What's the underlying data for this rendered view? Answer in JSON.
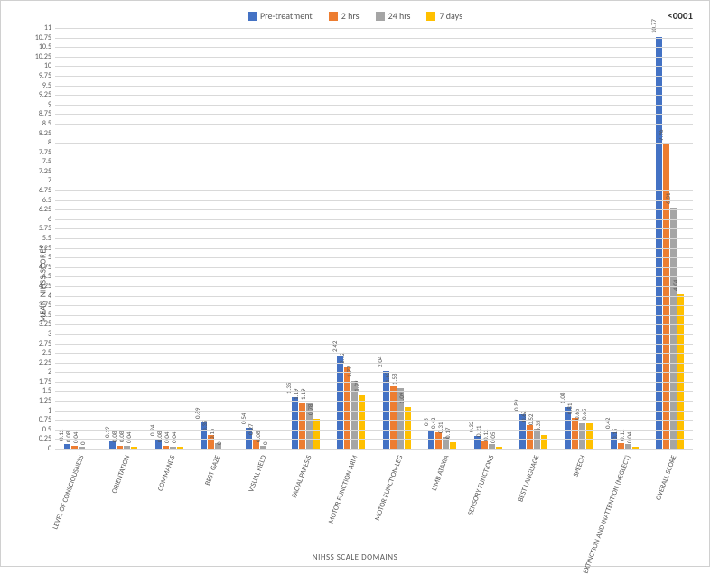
{
  "chart": {
    "type": "bar",
    "pvalue": "<0001",
    "ylabel": "MEAN NIHSS SCORES",
    "xlabel": "NIHSS SCALE DOMAINS",
    "ylim": [
      0,
      11
    ],
    "ytick_step": 0.25,
    "background_color": "#ffffff",
    "grid_color": "#d9d9d9",
    "label_fontsize": 9,
    "tick_fontsize": 8,
    "bar_label_fontsize": 7,
    "series": [
      {
        "name": "Pre-treatment",
        "color": "#4472c4"
      },
      {
        "name": "2 hrs",
        "color": "#ed7d31"
      },
      {
        "name": "24 hrs",
        "color": "#a5a5a5"
      },
      {
        "name": "7 days",
        "color": "#ffc000"
      }
    ],
    "categories": [
      {
        "label": "LEVEL OF CONSCIOUSNESS",
        "values": [
          0.12,
          0.08,
          0.04,
          0
        ],
        "labels": [
          "0.12",
          "0.08",
          "0.04",
          "0"
        ]
      },
      {
        "label": "ORIENTATION",
        "values": [
          0.19,
          0.08,
          0.08,
          0.04
        ],
        "labels": [
          "0.19",
          "0.08",
          "0.08",
          "0.04"
        ]
      },
      {
        "label": "COMMANDS",
        "values": [
          0.24,
          0.08,
          0.04,
          0.04
        ],
        "labels": [
          "0.24",
          "0.08",
          "0.04",
          "0.04"
        ]
      },
      {
        "label": "BEST GAZE",
        "values": [
          0.69,
          0.35,
          0.15,
          0
        ],
        "labels": [
          "0.69",
          "0.35",
          "0.15",
          "0"
        ]
      },
      {
        "label": "VISUAL FIELD",
        "values": [
          0.54,
          0.27,
          0.08,
          0
        ],
        "labels": [
          "0.54",
          "0.27",
          "0.08",
          "0"
        ]
      },
      {
        "label": "FACIAL PARESIS",
        "values": [
          1.35,
          1.19,
          1.19,
          0.78
        ],
        "labels": [
          "1.35",
          "1.19",
          "1.19",
          "0.78"
        ]
      },
      {
        "label": "MOTOR FUNCTION-ARM",
        "values": [
          2.42,
          2.12,
          1.77,
          1.39
        ],
        "labels": [
          "2.42",
          "2.12",
          "1.77",
          "1.39"
        ]
      },
      {
        "label": "MOTOR FUNCTION-LEG",
        "values": [
          2.04,
          1.62,
          1.58,
          1.09
        ],
        "labels": [
          "2.04",
          "1.62",
          "1.58",
          "1.09"
        ]
      },
      {
        "label": "LIMB ATAXIA",
        "values": [
          0.5,
          0.42,
          0.31,
          0.17
        ],
        "labels": [
          "0.5",
          "0.42",
          "0.31",
          "0.17"
        ]
      },
      {
        "label": "SENSORY FUNCTIONS",
        "values": [
          0.32,
          0.21,
          0.12,
          0.05
        ],
        "labels": [
          "0.32",
          "0.21",
          "0.12",
          "0.05"
        ]
      },
      {
        "label": "BEST LANGUAGE",
        "values": [
          0.89,
          0.62,
          0.52,
          0.35
        ],
        "labels": [
          "0.89",
          "0.62",
          "0.52",
          "0.35"
        ]
      },
      {
        "label": "SPEECH",
        "values": [
          1.08,
          0.81,
          0.65,
          0.65
        ],
        "labels": [
          "1.08",
          "0.81",
          "0.65",
          "0.65"
        ]
      },
      {
        "label": "EXTINCTION AND INATTENTION (NEGLECT)",
        "values": [
          0.42,
          0.15,
          0.12,
          0.04
        ],
        "labels": [
          "0.42",
          "0.15",
          "0.12",
          "0.04"
        ]
      },
      {
        "label": "OVERALL SCORE",
        "values": [
          10.77,
          7.96,
          6.31,
          4.04
        ],
        "labels": [
          "10.77",
          "7.96",
          "6.31",
          "4.04"
        ]
      }
    ]
  }
}
